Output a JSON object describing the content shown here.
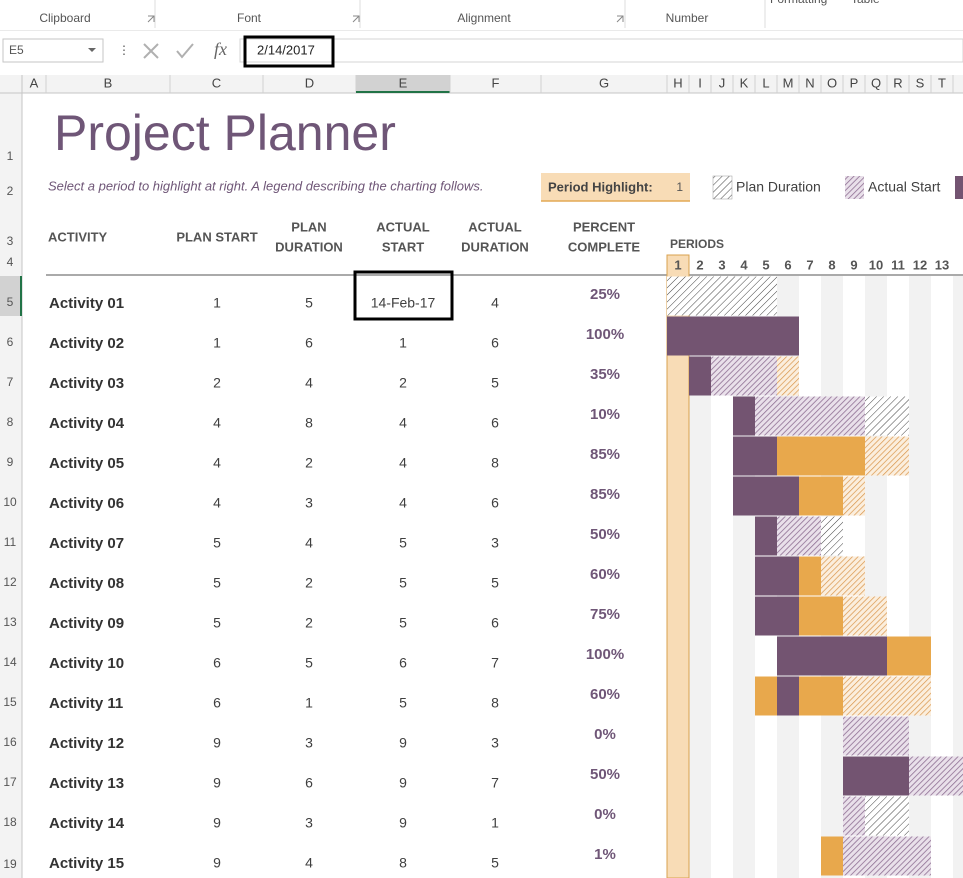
{
  "ribbon": {
    "groups": [
      "Clipboard",
      "Font",
      "Alignment",
      "Number"
    ],
    "partial": [
      "Formatting",
      "Table"
    ]
  },
  "formula_bar": {
    "name_box": "E5",
    "fx": "fx",
    "formula": "2/14/2017"
  },
  "columns": [
    "A",
    "B",
    "C",
    "D",
    "E",
    "F",
    "G",
    "H",
    "I",
    "J",
    "K",
    "L",
    "M",
    "N",
    "O",
    "P",
    "Q",
    "R",
    "S",
    "T"
  ],
  "rows": [
    1,
    2,
    3,
    4,
    5,
    6,
    7,
    8,
    9,
    10,
    11,
    12,
    13,
    14,
    15,
    16,
    17,
    18,
    19
  ],
  "sheet": {
    "title": "Project Planner",
    "subtitle": "Select a period to highlight at right.  A legend describing the charting follows.",
    "period_highlight_label": "Period Highlight:",
    "period_highlight": 1,
    "legend": [
      "Plan Duration",
      "Actual Start"
    ],
    "headers": {
      "activity": [
        "ACTIVITY"
      ],
      "plan_start": [
        "PLAN START"
      ],
      "plan_duration": [
        "PLAN",
        "DURATION"
      ],
      "actual_start": [
        "ACTUAL",
        "START"
      ],
      "actual_duration": [
        "ACTUAL",
        "DURATION"
      ],
      "percent": [
        "PERCENT",
        "COMPLETE"
      ]
    },
    "periods_label": "PERIODS",
    "periods": [
      1,
      2,
      3,
      4,
      5,
      6,
      7,
      8,
      9,
      10,
      11,
      12,
      13
    ],
    "activities": [
      {
        "name": "Activity 01",
        "plan_start": 1,
        "plan_duration": 5,
        "actual_start": "14-Feb-17",
        "actual_duration": 4,
        "percent": 25,
        "percent_label": "25%"
      },
      {
        "name": "Activity 02",
        "plan_start": 1,
        "plan_duration": 6,
        "actual_start": 1,
        "actual_duration": 6,
        "percent": 100,
        "percent_label": "100%"
      },
      {
        "name": "Activity 03",
        "plan_start": 2,
        "plan_duration": 4,
        "actual_start": 2,
        "actual_duration": 5,
        "percent": 35,
        "percent_label": "35%"
      },
      {
        "name": "Activity 04",
        "plan_start": 4,
        "plan_duration": 8,
        "actual_start": 4,
        "actual_duration": 6,
        "percent": 10,
        "percent_label": "10%"
      },
      {
        "name": "Activity 05",
        "plan_start": 4,
        "plan_duration": 2,
        "actual_start": 4,
        "actual_duration": 8,
        "percent": 85,
        "percent_label": "85%"
      },
      {
        "name": "Activity 06",
        "plan_start": 4,
        "plan_duration": 3,
        "actual_start": 4,
        "actual_duration": 6,
        "percent": 85,
        "percent_label": "85%"
      },
      {
        "name": "Activity 07",
        "plan_start": 5,
        "plan_duration": 4,
        "actual_start": 5,
        "actual_duration": 3,
        "percent": 50,
        "percent_label": "50%"
      },
      {
        "name": "Activity 08",
        "plan_start": 5,
        "plan_duration": 2,
        "actual_start": 5,
        "actual_duration": 5,
        "percent": 60,
        "percent_label": "60%"
      },
      {
        "name": "Activity 09",
        "plan_start": 5,
        "plan_duration": 2,
        "actual_start": 5,
        "actual_duration": 6,
        "percent": 75,
        "percent_label": "75%"
      },
      {
        "name": "Activity 10",
        "plan_start": 6,
        "plan_duration": 5,
        "actual_start": 6,
        "actual_duration": 7,
        "percent": 100,
        "percent_label": "100%"
      },
      {
        "name": "Activity 11",
        "plan_start": 6,
        "plan_duration": 1,
        "actual_start": 5,
        "actual_duration": 8,
        "percent": 60,
        "percent_label": "60%"
      },
      {
        "name": "Activity 12",
        "plan_start": 9,
        "plan_duration": 3,
        "actual_start": 9,
        "actual_duration": 3,
        "percent": 0,
        "percent_label": "0%"
      },
      {
        "name": "Activity 13",
        "plan_start": 9,
        "plan_duration": 6,
        "actual_start": 9,
        "actual_duration": 7,
        "percent": 50,
        "percent_label": "50%"
      },
      {
        "name": "Activity 14",
        "plan_start": 9,
        "plan_duration": 3,
        "actual_start": 9,
        "actual_duration": 1,
        "percent": 0,
        "percent_label": "0%"
      },
      {
        "name": "Activity 15",
        "plan_start": 9,
        "plan_duration": 4,
        "actual_start": 8,
        "actual_duration": 5,
        "percent": 1,
        "percent_label": "1%"
      }
    ]
  }
}
